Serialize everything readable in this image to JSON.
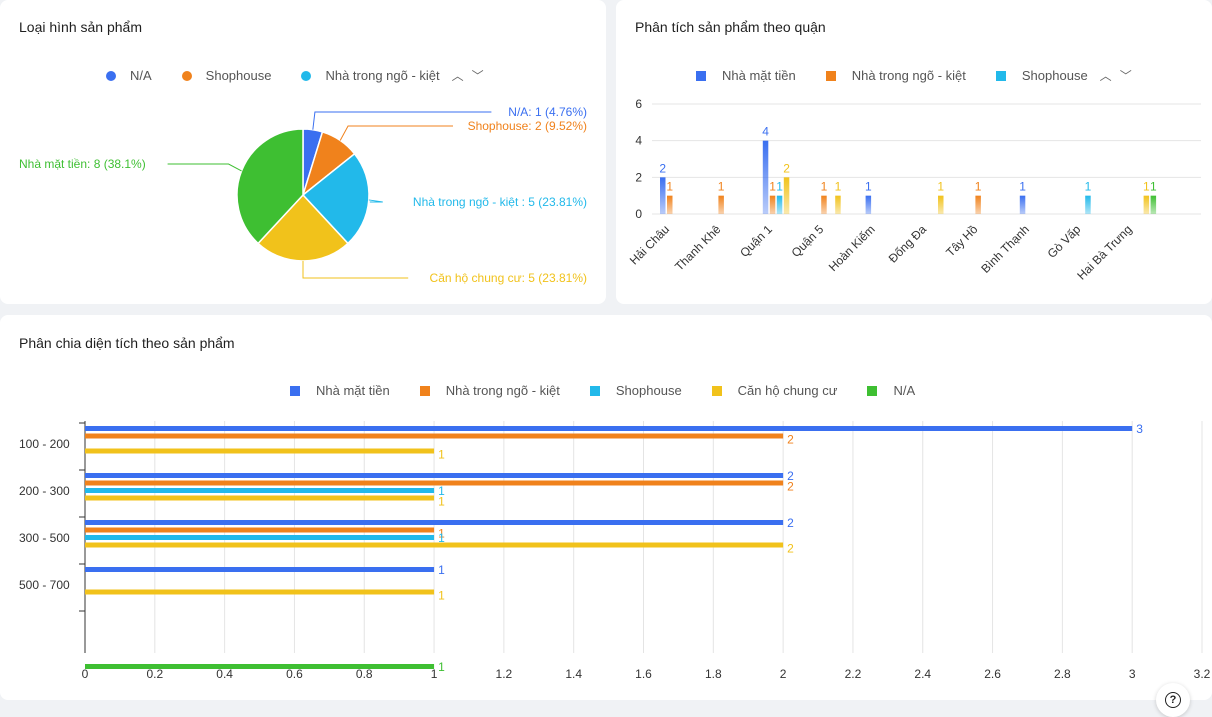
{
  "colors": {
    "blue": "#3a6ff0",
    "orange": "#f0821c",
    "cyan": "#22b9ea",
    "yellow": "#f1c21b",
    "green": "#3ebf32"
  },
  "pie_card": {
    "title": "Loại hình sản phẩm",
    "pager_up": "︿",
    "pager_down": "﹀"
  },
  "district_card": {
    "title": "Phân tích sản phẩm theo quận",
    "pager_up": "︿",
    "pager_down": "﹀"
  },
  "area_card": {
    "title": "Phân chia diện tích theo sản phẩm"
  },
  "help": {
    "icon_label": "?"
  },
  "chart_data": [
    {
      "type": "pie",
      "title": "Loại hình sản phẩm",
      "legend": [
        {
          "name": "N/A",
          "color": "blue"
        },
        {
          "name": "Shophouse",
          "color": "orange"
        },
        {
          "name": "Nhà trong ngõ - kiệt",
          "color": "cyan"
        }
      ],
      "slices": [
        {
          "name": "N/A",
          "value": 1,
          "color": "blue",
          "label": "N/A: 1 (4.76%)"
        },
        {
          "name": "Shophouse",
          "value": 2,
          "color": "orange",
          "label": "Shophouse: 2 (9.52%)"
        },
        {
          "name": "Nhà trong ngõ - kiệt",
          "value": 5,
          "color": "cyan",
          "label": "Nhà trong ngõ - kiệt : 5 (23.81%)"
        },
        {
          "name": "Căn hộ chung cư",
          "value": 5,
          "color": "yellow",
          "label": "Căn hộ chung cư: 5 (23.81%)"
        },
        {
          "name": "Nhà mặt tiền",
          "value": 8,
          "color": "green",
          "label": "Nhà mặt tiền: 8 (38.1%)"
        }
      ]
    },
    {
      "type": "bar",
      "title": "Phân tích sản phẩm theo quận",
      "legend": [
        {
          "name": "Nhà mặt tiền",
          "color": "blue"
        },
        {
          "name": "Nhà trong ngõ - kiệt",
          "color": "orange"
        },
        {
          "name": "Shophouse",
          "color": "cyan"
        }
      ],
      "categories": [
        "Hải Châu",
        "Thanh Khê",
        "Quận 1",
        "Quận 5",
        "Hoàn Kiếm",
        "Đống Đa",
        "Tây Hồ",
        "Bình Thạnh",
        "Gò Vấp",
        "Hai Bà Trưng"
      ],
      "ylim": [
        0,
        6
      ],
      "yticks": [
        0,
        2,
        4,
        6
      ],
      "bars": [
        {
          "name": "Nhà mặt tiền",
          "color": "blue",
          "values": [
            2,
            0,
            4,
            0,
            1,
            0,
            0,
            1,
            0,
            0
          ]
        },
        {
          "name": "Nhà trong ngõ - kiệt",
          "color": "orange",
          "values": [
            1,
            1,
            1,
            1,
            0,
            0,
            1,
            0,
            0,
            0
          ]
        },
        {
          "name": "Shophouse",
          "color": "cyan",
          "values": [
            0,
            0,
            1,
            0,
            0,
            0,
            0,
            0,
            1,
            0
          ]
        },
        {
          "name": "Căn hộ chung cư",
          "color": "yellow",
          "values": [
            0,
            0,
            2,
            1,
            0,
            1,
            0,
            0,
            0,
            1
          ]
        },
        {
          "name": "N/A",
          "color": "green",
          "values": [
            0,
            0,
            0,
            0,
            0,
            0,
            0,
            0,
            0,
            1
          ]
        }
      ]
    },
    {
      "type": "bar",
      "orientation": "horizontal",
      "title": "Phân chia diện tích theo sản phẩm",
      "legend": [
        {
          "name": "Nhà mặt tiền",
          "color": "blue"
        },
        {
          "name": "Nhà trong ngõ - kiệt",
          "color": "orange"
        },
        {
          "name": "Shophouse",
          "color": "cyan"
        },
        {
          "name": "Căn hộ chung cư",
          "color": "yellow"
        },
        {
          "name": "N/A",
          "color": "green"
        }
      ],
      "categories": [
        "100 - 200",
        "200 - 300",
        "300 - 500",
        "500 - 700",
        ""
      ],
      "xlim": [
        0,
        3.2
      ],
      "xticks": [
        0,
        0.2,
        0.4,
        0.6,
        0.8,
        1,
        1.2,
        1.4,
        1.6,
        1.8,
        2,
        2.2,
        2.4,
        2.6,
        2.8,
        3,
        3.2
      ],
      "series": [
        {
          "name": "Nhà mặt tiền",
          "color": "blue",
          "values": [
            3,
            2,
            2,
            1,
            0
          ]
        },
        {
          "name": "Nhà trong ngõ - kiệt",
          "color": "orange",
          "values": [
            2,
            2,
            1,
            0,
            0
          ]
        },
        {
          "name": "Shophouse",
          "color": "cyan",
          "values": [
            0,
            1,
            1,
            0,
            0
          ]
        },
        {
          "name": "Căn hộ chung cư",
          "color": "yellow",
          "values": [
            1,
            1,
            2,
            1,
            0
          ]
        },
        {
          "name": "N/A",
          "color": "green",
          "values": [
            0,
            0,
            0,
            0,
            1
          ]
        }
      ]
    }
  ]
}
